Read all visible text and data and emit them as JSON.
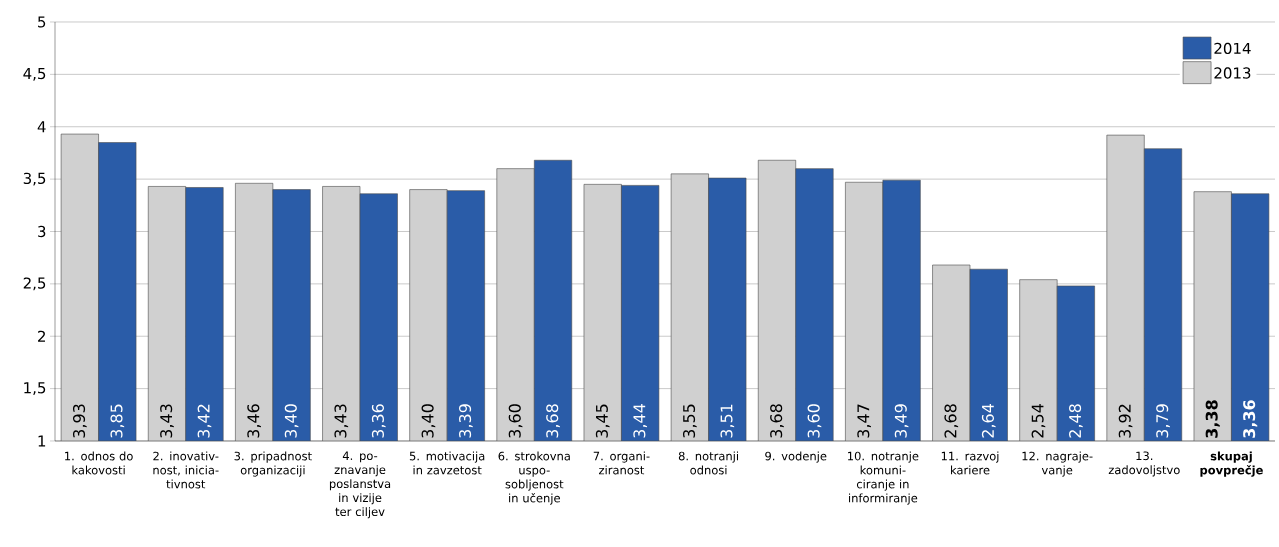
{
  "chart_data": {
    "type": "bar",
    "categories": [
      "1. odnos do kakovosti",
      "2. inovativ-nost, inicia-tivnost",
      "3. pripadnost organizaciji",
      "4. po-znavanje poslanstva in vizije ter ciljev",
      "5. motivacija in zavzetost",
      "6. strokovna uspo-sobljenost in učenje",
      "7. organi-ziranost",
      "8. notranji odnosi",
      "9. vodenje",
      "10. notranje komuni-ciranje in informiranje",
      "11. razvoj kariere",
      "12. nagraje-vanje",
      "13. zadovoljstvo",
      "skupaj povprečje"
    ],
    "series": [
      {
        "name": "2013",
        "color": "#d0d0d0",
        "values": [
          3.93,
          3.43,
          3.46,
          3.43,
          3.4,
          3.6,
          3.45,
          3.55,
          3.68,
          3.47,
          2.68,
          2.54,
          3.92,
          3.38
        ],
        "value_labels": [
          "3,93",
          "3,43",
          "3,46",
          "3,43",
          "3,40",
          "3,60",
          "3,45",
          "3,55",
          "3,68",
          "3,47",
          "2,68",
          "2,54",
          "3,92",
          "3,38"
        ]
      },
      {
        "name": "2014",
        "color": "#2a5ca8",
        "values": [
          3.85,
          3.42,
          3.4,
          3.36,
          3.39,
          3.68,
          3.44,
          3.51,
          3.6,
          3.49,
          2.64,
          2.48,
          3.79,
          3.36
        ],
        "value_labels": [
          "3,85",
          "3,42",
          "3,40",
          "3,36",
          "3,39",
          "3,68",
          "3,44",
          "3,51",
          "3,60",
          "3,49",
          "2,64",
          "2,48",
          "3,79",
          "3,36"
        ]
      }
    ],
    "ylim": [
      1,
      5
    ],
    "yticks": [
      1,
      {
        "value": 1.5,
        "label": "1,5"
      },
      2,
      {
        "value": 2.5,
        "label": "2,5"
      },
      3,
      {
        "value": 3.5,
        "label": "3,5"
      },
      4,
      {
        "value": 4.5,
        "label": "4,5"
      },
      5
    ],
    "grid": "y",
    "legend": "top right"
  }
}
